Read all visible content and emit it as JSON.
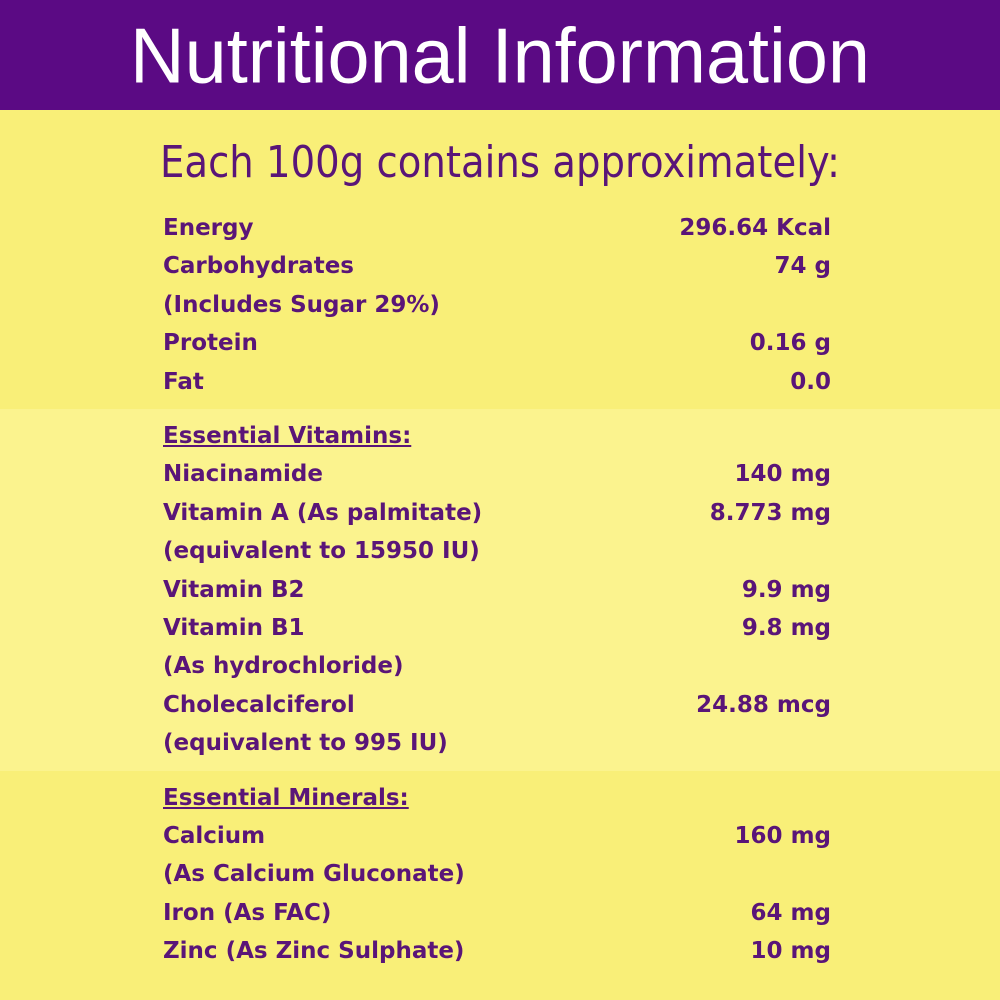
{
  "header": {
    "title": "Nutritional Information"
  },
  "subtitle": "Each 100g contains approximately:",
  "sections": [
    {
      "rows": [
        {
          "label": "Energy",
          "value": "296.64 Kcal"
        },
        {
          "label": "Carbohydrates",
          "value": "74 g"
        },
        {
          "label": "(Includes Sugar 29%)"
        },
        {
          "label": "Protein",
          "value": "0.16 g"
        },
        {
          "label": "Fat",
          "value": "0.0"
        }
      ]
    },
    {
      "heading": "Essential Vitamins:",
      "rows": [
        {
          "label": "Niacinamide",
          "value": "140 mg"
        },
        {
          "label": "Vitamin A (As palmitate)",
          "value": "8.773 mg"
        },
        {
          "label": "(equivalent to 15950 IU)"
        },
        {
          "label": "Vitamin B2",
          "value": "9.9 mg"
        },
        {
          "label": "Vitamin B1",
          "value": "9.8 mg"
        },
        {
          "label": "(As hydrochloride)"
        },
        {
          "label": "Cholecalciferol",
          "value": "24.88 mcg"
        },
        {
          "label": "(equivalent to 995 IU)"
        }
      ]
    },
    {
      "heading": "Essential Minerals:",
      "rows": [
        {
          "label": "Calcium",
          "value": "160 mg"
        },
        {
          "label": "(As Calcium Gluconate)"
        },
        {
          "label": "Iron (As FAC)",
          "value": "64 mg"
        },
        {
          "label": "Zinc (As Zinc Sulphate)",
          "value": "10 mg"
        }
      ]
    }
  ]
}
